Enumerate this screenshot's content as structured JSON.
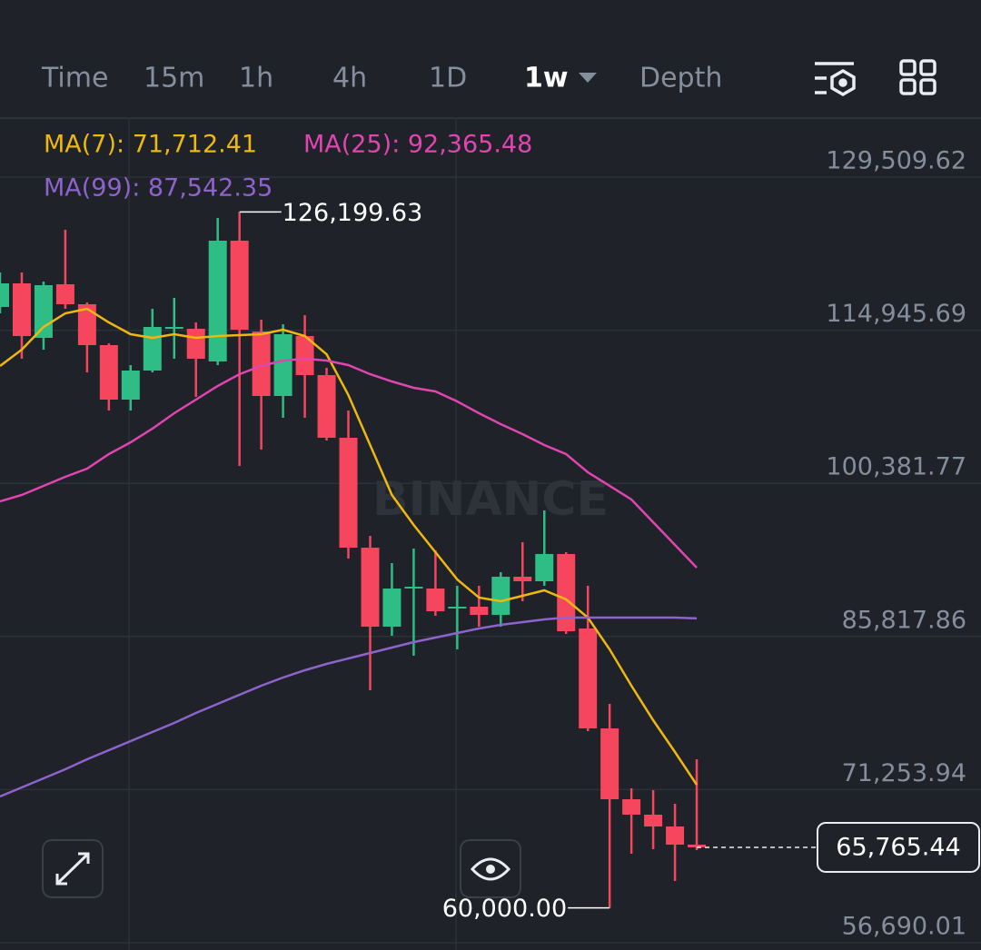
{
  "toolbar": {
    "tabs": [
      "Time",
      "15m",
      "1h",
      "4h",
      "1D",
      "1w",
      "Depth"
    ],
    "active": 5
  },
  "chart_data": {
    "type": "candlestick",
    "watermark": "BINANCE",
    "up_color": "#2ebd85",
    "down_color": "#f6465d",
    "ylim": [
      55999,
      135124
    ],
    "yticks": [
      {
        "value": 129509.62,
        "label": "129,509.62"
      },
      {
        "value": 114945.69,
        "label": "114,945.69"
      },
      {
        "value": 100381.77,
        "label": "100,381.77"
      },
      {
        "value": 85817.86,
        "label": "85,817.86"
      },
      {
        "value": 71253.94,
        "label": "71,253.94"
      },
      {
        "value": 56690.01,
        "label": "56,690.01"
      }
    ],
    "grid": true,
    "candles": [
      {
        "open": 117157,
        "high": 120439,
        "low": 116552,
        "close": 119402
      },
      {
        "open": 119402,
        "high": 120439,
        "low": 112233,
        "close": 114392
      },
      {
        "open": 114220,
        "high": 119575,
        "low": 113097,
        "close": 119230
      },
      {
        "open": 119316,
        "high": 124499,
        "low": 116984,
        "close": 117416
      },
      {
        "open": 117416,
        "high": 117588,
        "low": 110937,
        "close": 113529
      },
      {
        "open": 113529,
        "high": 113701,
        "low": 107309,
        "close": 108346
      },
      {
        "open": 108346,
        "high": 111628,
        "low": 107309,
        "close": 111110
      },
      {
        "open": 111110,
        "high": 116984,
        "low": 110937,
        "close": 115256
      },
      {
        "open": 115083,
        "high": 118020,
        "low": 112233,
        "close": 115256
      },
      {
        "open": 115083,
        "high": 115688,
        "low": 108605,
        "close": 112233
      },
      {
        "open": 111974,
        "high": 125622,
        "low": 111628,
        "close": 123462
      },
      {
        "open": 123462,
        "high": 126199.63,
        "low": 102040,
        "close": 114997
      },
      {
        "open": 114824,
        "high": 115947,
        "low": 103595,
        "close": 108691
      },
      {
        "open": 108691,
        "high": 115515,
        "low": 106618,
        "close": 114565
      },
      {
        "open": 114392,
        "high": 116379,
        "low": 106618,
        "close": 110678
      },
      {
        "open": 110678,
        "high": 111369,
        "low": 104459,
        "close": 104718
      },
      {
        "open": 104718,
        "high": 107309,
        "low": 93229,
        "close": 94266
      },
      {
        "open": 94266,
        "high": 95389,
        "low": 80704,
        "close": 86751
      },
      {
        "open": 86751,
        "high": 92797,
        "low": 85887,
        "close": 90379
      },
      {
        "open": 90379,
        "high": 94179,
        "low": 83987,
        "close": 90552
      },
      {
        "open": 90379,
        "high": 94007,
        "low": 87787,
        "close": 88219
      },
      {
        "open": 88478,
        "high": 90638,
        "low": 84591,
        "close": 88651
      },
      {
        "open": 88651,
        "high": 90638,
        "low": 86751,
        "close": 87874
      },
      {
        "open": 87874,
        "high": 91934,
        "low": 86751,
        "close": 91502
      },
      {
        "open": 91502,
        "high": 94784,
        "low": 89169,
        "close": 91070
      },
      {
        "open": 91070,
        "high": 97807,
        "low": 90638,
        "close": 93661
      },
      {
        "open": 93661,
        "high": 93834,
        "low": 86060,
        "close": 86319
      },
      {
        "open": 86578,
        "high": 90638,
        "low": 76817,
        "close": 77076
      },
      {
        "open": 77076,
        "high": 79408,
        "low": 60000,
        "close": 70339
      },
      {
        "open": 70339,
        "high": 71375,
        "low": 65156,
        "close": 68870
      },
      {
        "open": 68870,
        "high": 71202,
        "low": 65588,
        "close": 67747
      },
      {
        "open": 67747,
        "high": 69907,
        "low": 62564,
        "close": 66020
      },
      {
        "open": 66020,
        "high": 74139,
        "low": 65501,
        "close": 65765.44
      }
    ],
    "high_label": "126,199.63",
    "low_label": "60,000.00",
    "last_price_label": "65,765.44",
    "series": [
      {
        "name": "MA(7): 71,712.41",
        "color": "#eeb80f",
        "values": [
          111542,
          113097,
          115256,
          116552,
          116984,
          115688,
          114565,
          114220,
          114565,
          114220,
          114392,
          114478,
          114565,
          114997,
          114392,
          112665,
          108778,
          104027,
          99276,
          96425,
          93834,
          91243,
          89515,
          89169,
          89687,
          90206,
          89342,
          87614,
          84591,
          81136,
          77853,
          74830,
          71712.41
        ]
      },
      {
        "name": "MA(25): 92,365.48",
        "color": "#e045b0",
        "values": [
          98671,
          99276,
          100140,
          101003,
          101781,
          103163,
          104286,
          105582,
          107050,
          108346,
          109642,
          110765,
          111542,
          112060,
          112233,
          112060,
          111628,
          110765,
          110073,
          109469,
          109124,
          108173,
          107050,
          106013,
          105063,
          104027,
          103163,
          101435,
          100140,
          98844,
          96684,
          94524,
          92365.48
        ]
      },
      {
        "name": "MA(99): 87,542.35",
        "color": "#8e63cc",
        "values": [
          70598,
          71461,
          72325,
          73189,
          74139,
          75003,
          75867,
          76730,
          77594,
          78544,
          79408,
          80272,
          81136,
          81914,
          82605,
          83209,
          83728,
          84246,
          84764,
          85282,
          85714,
          86146,
          86578,
          86924,
          87183,
          87442,
          87614,
          87614,
          87614,
          87614,
          87614,
          87614,
          87542.35
        ]
      }
    ]
  }
}
